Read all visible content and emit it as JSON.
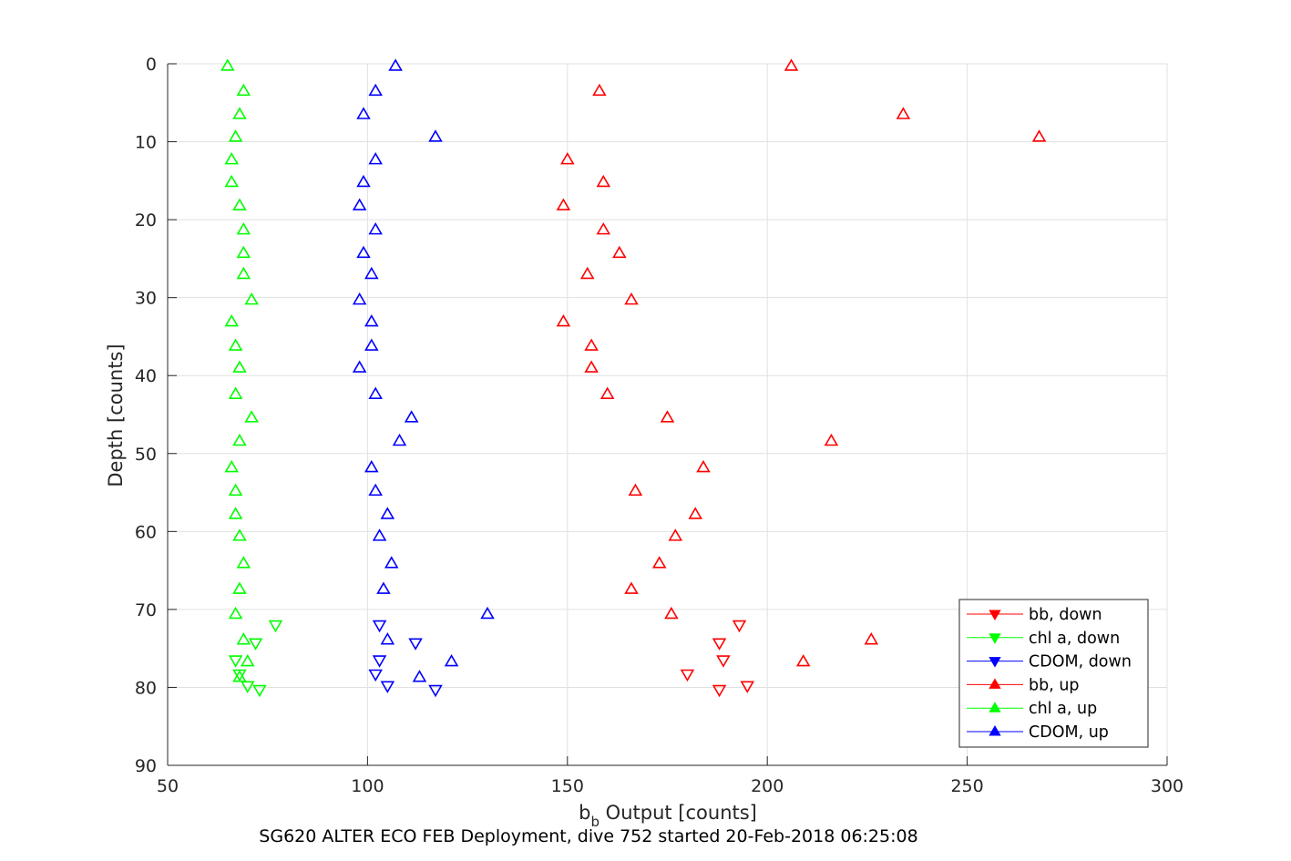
{
  "chart_data": {
    "type": "scatter",
    "xlabel_main": "b",
    "xlabel_sub": "b",
    "xlabel_rest": " Output [counts]",
    "ylabel": "Depth [counts]",
    "footer": "SG620 ALTER ECO FEB Deployment, dive 752 started 20-Feb-2018 06:25:08",
    "xlim": [
      50,
      300
    ],
    "ylim": [
      0,
      90
    ],
    "y_reversed": true,
    "grid": true,
    "legend_position": "bottom-right",
    "x_ticks": [
      "50",
      "100",
      "150",
      "200",
      "250",
      "300"
    ],
    "y_ticks": [
      "0",
      "10",
      "20",
      "30",
      "40",
      "50",
      "60",
      "70",
      "80",
      "90"
    ],
    "series": [
      {
        "name": "bb, down",
        "color": "#ff0000",
        "marker": "triangle-down",
        "points": [
          [
            193,
            72.0
          ],
          [
            188,
            74.3
          ],
          [
            189,
            76.5
          ],
          [
            180,
            78.3
          ],
          [
            195,
            79.8
          ],
          [
            188,
            80.3
          ]
        ]
      },
      {
        "name": "chl a, down",
        "color": "#00ff00",
        "marker": "triangle-down",
        "points": [
          [
            77,
            72.0
          ],
          [
            72,
            74.3
          ],
          [
            67,
            76.5
          ],
          [
            68,
            78.3
          ],
          [
            70,
            79.8
          ],
          [
            73,
            80.3
          ]
        ]
      },
      {
        "name": "CDOM, down",
        "color": "#0000ff",
        "marker": "triangle-down",
        "points": [
          [
            103,
            72.0
          ],
          [
            112,
            74.3
          ],
          [
            103,
            76.5
          ],
          [
            102,
            78.3
          ],
          [
            105,
            79.8
          ],
          [
            117,
            80.3
          ]
        ]
      },
      {
        "name": "bb, up",
        "color": "#ff0000",
        "marker": "triangle-up",
        "points": [
          [
            206,
            0.3
          ],
          [
            158,
            3.5
          ],
          [
            234,
            6.5
          ],
          [
            268,
            9.4
          ],
          [
            150,
            12.3
          ],
          [
            159,
            15.2
          ],
          [
            149,
            18.2
          ],
          [
            159,
            21.3
          ],
          [
            163,
            24.3
          ],
          [
            155,
            27.0
          ],
          [
            166,
            30.3
          ],
          [
            149,
            33.1
          ],
          [
            156,
            36.2
          ],
          [
            156,
            39.0
          ],
          [
            160,
            42.4
          ],
          [
            175,
            45.4
          ],
          [
            216,
            48.4
          ],
          [
            184,
            51.8
          ],
          [
            167,
            54.8
          ],
          [
            182,
            57.8
          ],
          [
            177,
            60.6
          ],
          [
            173,
            64.1
          ],
          [
            166,
            67.4
          ],
          [
            176,
            70.6
          ],
          [
            226,
            73.9
          ],
          [
            209,
            76.7
          ]
        ]
      },
      {
        "name": "chl a, up",
        "color": "#00ff00",
        "marker": "triangle-up",
        "points": [
          [
            65,
            0.3
          ],
          [
            69,
            3.5
          ],
          [
            68,
            6.5
          ],
          [
            67,
            9.4
          ],
          [
            66,
            12.3
          ],
          [
            66,
            15.2
          ],
          [
            68,
            18.2
          ],
          [
            69,
            21.3
          ],
          [
            69,
            24.3
          ],
          [
            69,
            27.0
          ],
          [
            71,
            30.3
          ],
          [
            66,
            33.1
          ],
          [
            67,
            36.2
          ],
          [
            68,
            39.0
          ],
          [
            67,
            42.4
          ],
          [
            71,
            45.4
          ],
          [
            68,
            48.4
          ],
          [
            66,
            51.8
          ],
          [
            67,
            54.8
          ],
          [
            67,
            57.8
          ],
          [
            68,
            60.6
          ],
          [
            69,
            64.1
          ],
          [
            68,
            67.4
          ],
          [
            67,
            70.6
          ],
          [
            69,
            73.9
          ],
          [
            70,
            76.7
          ],
          [
            68,
            78.7
          ]
        ]
      },
      {
        "name": "CDOM, up",
        "color": "#0000ff",
        "marker": "triangle-up",
        "points": [
          [
            107,
            0.3
          ],
          [
            102,
            3.5
          ],
          [
            99,
            6.5
          ],
          [
            117,
            9.4
          ],
          [
            102,
            12.3
          ],
          [
            99,
            15.2
          ],
          [
            98,
            18.2
          ],
          [
            102,
            21.3
          ],
          [
            99,
            24.3
          ],
          [
            101,
            27.0
          ],
          [
            98,
            30.3
          ],
          [
            101,
            33.1
          ],
          [
            101,
            36.2
          ],
          [
            98,
            39.0
          ],
          [
            102,
            42.4
          ],
          [
            111,
            45.4
          ],
          [
            108,
            48.4
          ],
          [
            101,
            51.8
          ],
          [
            102,
            54.8
          ],
          [
            105,
            57.8
          ],
          [
            103,
            60.6
          ],
          [
            106,
            64.1
          ],
          [
            104,
            67.4
          ],
          [
            130,
            70.6
          ],
          [
            105,
            73.9
          ],
          [
            121,
            76.7
          ],
          [
            113,
            78.7
          ]
        ]
      }
    ]
  }
}
